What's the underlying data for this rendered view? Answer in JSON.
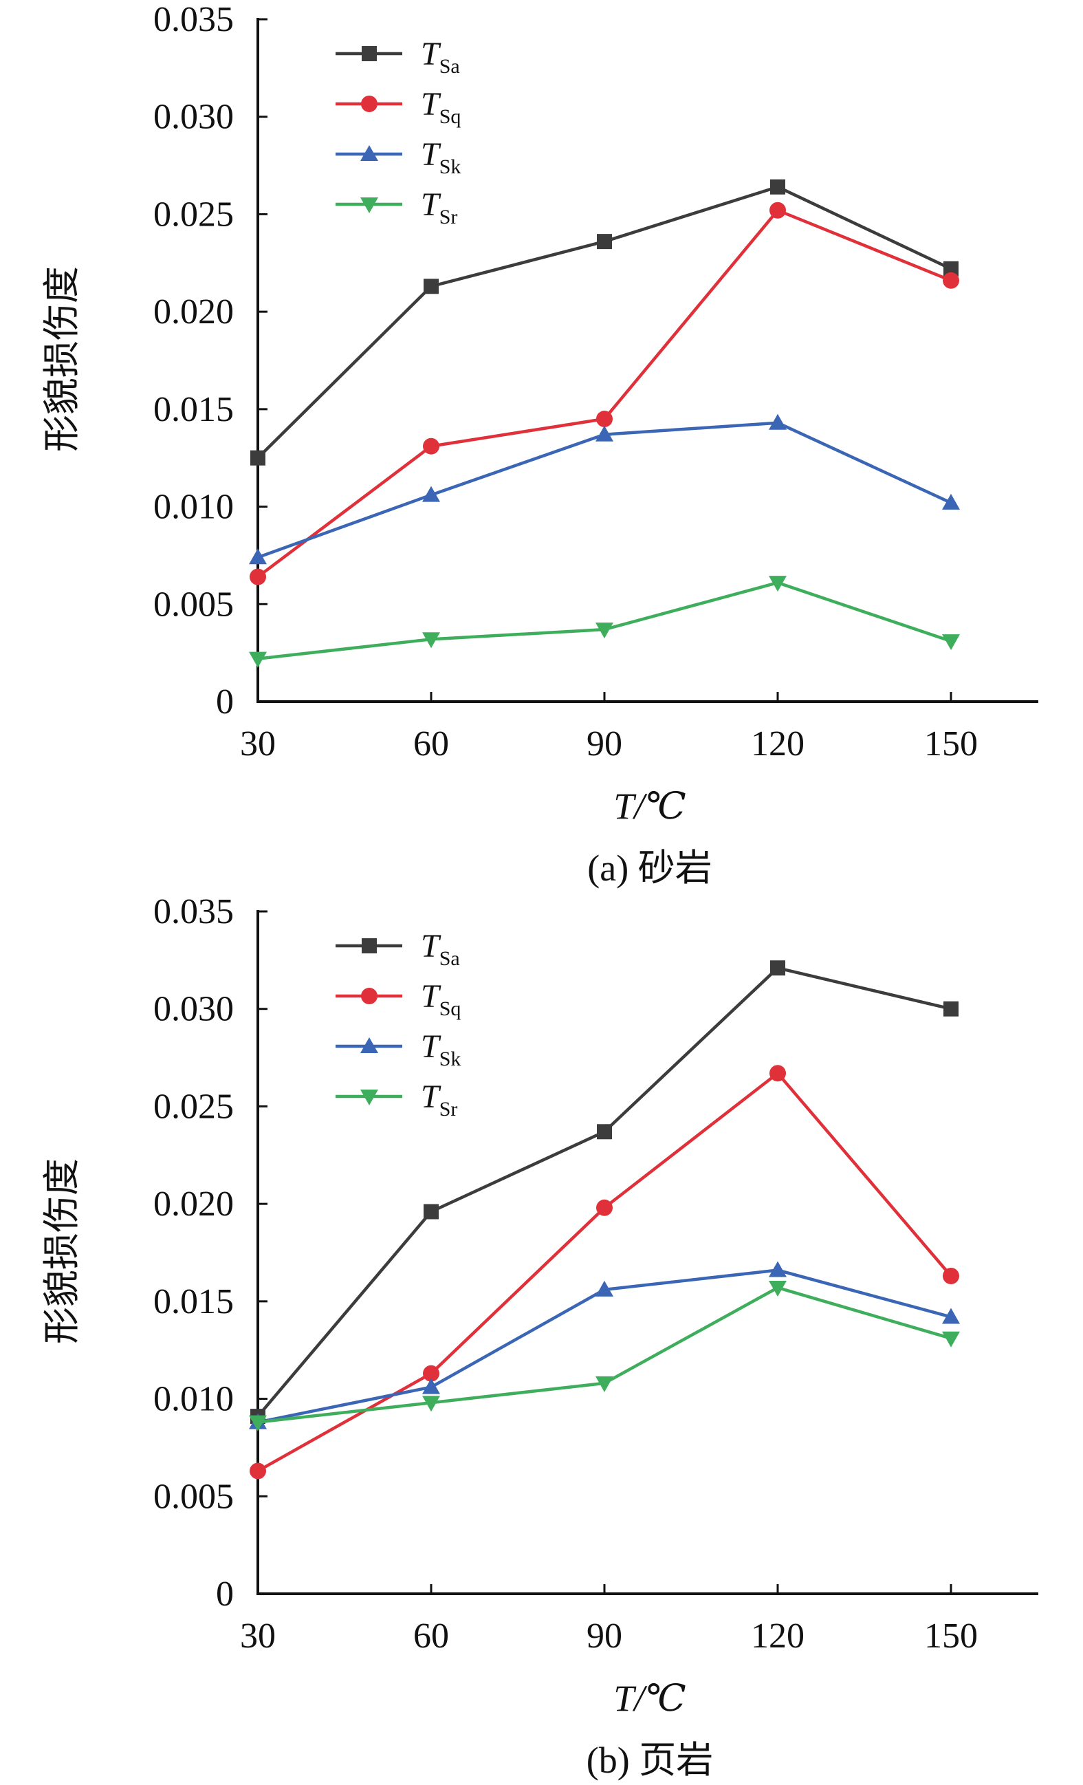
{
  "chart_data": [
    {
      "type": "line",
      "caption": "(a) 砂岩",
      "xlabel": "T/℃",
      "ylabel": "形貌损伤度",
      "categories": [
        "30",
        "60",
        "90",
        "120",
        "150"
      ],
      "yticks": [
        "0",
        "0.005",
        "0.010",
        "0.015",
        "0.020",
        "0.025",
        "0.030",
        "0.035"
      ],
      "ylim": [
        0,
        0.035
      ],
      "legend_position": "top-left",
      "series": [
        {
          "name": "T_Sa",
          "main": "T",
          "sub": "Sa",
          "color": "#3c3c3c",
          "marker": "square",
          "values": [
            0.0125,
            0.0213,
            0.0236,
            0.0264,
            0.0222
          ]
        },
        {
          "name": "T_Sq",
          "main": "T",
          "sub": "Sq",
          "color": "#e0303a",
          "marker": "circle",
          "values": [
            0.0064,
            0.0131,
            0.0145,
            0.0252,
            0.0216
          ]
        },
        {
          "name": "T_Sk",
          "main": "T",
          "sub": "Sk",
          "color": "#3a66b5",
          "marker": "triangle-up",
          "values": [
            0.0074,
            0.0106,
            0.0137,
            0.0143,
            0.0102
          ]
        },
        {
          "name": "T_Sr",
          "main": "T",
          "sub": "Sr",
          "color": "#3fae5c",
          "marker": "triangle-down",
          "values": [
            0.0022,
            0.0032,
            0.0037,
            0.0061,
            0.0031
          ]
        }
      ]
    },
    {
      "type": "line",
      "caption": "(b) 页岩",
      "xlabel": "T/℃",
      "ylabel": "形貌损伤度",
      "categories": [
        "30",
        "60",
        "90",
        "120",
        "150"
      ],
      "yticks": [
        "0",
        "0.005",
        "0.010",
        "0.015",
        "0.020",
        "0.025",
        "0.030",
        "0.035"
      ],
      "ylim": [
        0,
        0.035
      ],
      "legend_position": "top-left",
      "series": [
        {
          "name": "T_Sa",
          "main": "T",
          "sub": "Sa",
          "color": "#3c3c3c",
          "marker": "square",
          "values": [
            0.0091,
            0.0196,
            0.0237,
            0.0321,
            0.03
          ]
        },
        {
          "name": "T_Sq",
          "main": "T",
          "sub": "Sq",
          "color": "#e0303a",
          "marker": "circle",
          "values": [
            0.0063,
            0.0113,
            0.0198,
            0.0267,
            0.0163
          ]
        },
        {
          "name": "T_Sk",
          "main": "T",
          "sub": "Sk",
          "color": "#3a66b5",
          "marker": "triangle-up",
          "values": [
            0.0088,
            0.0106,
            0.0156,
            0.0166,
            0.0142
          ]
        },
        {
          "name": "T_Sr",
          "main": "T",
          "sub": "Sr",
          "color": "#3fae5c",
          "marker": "triangle-down",
          "values": [
            0.0088,
            0.0098,
            0.0108,
            0.0157,
            0.0131
          ]
        }
      ]
    }
  ]
}
